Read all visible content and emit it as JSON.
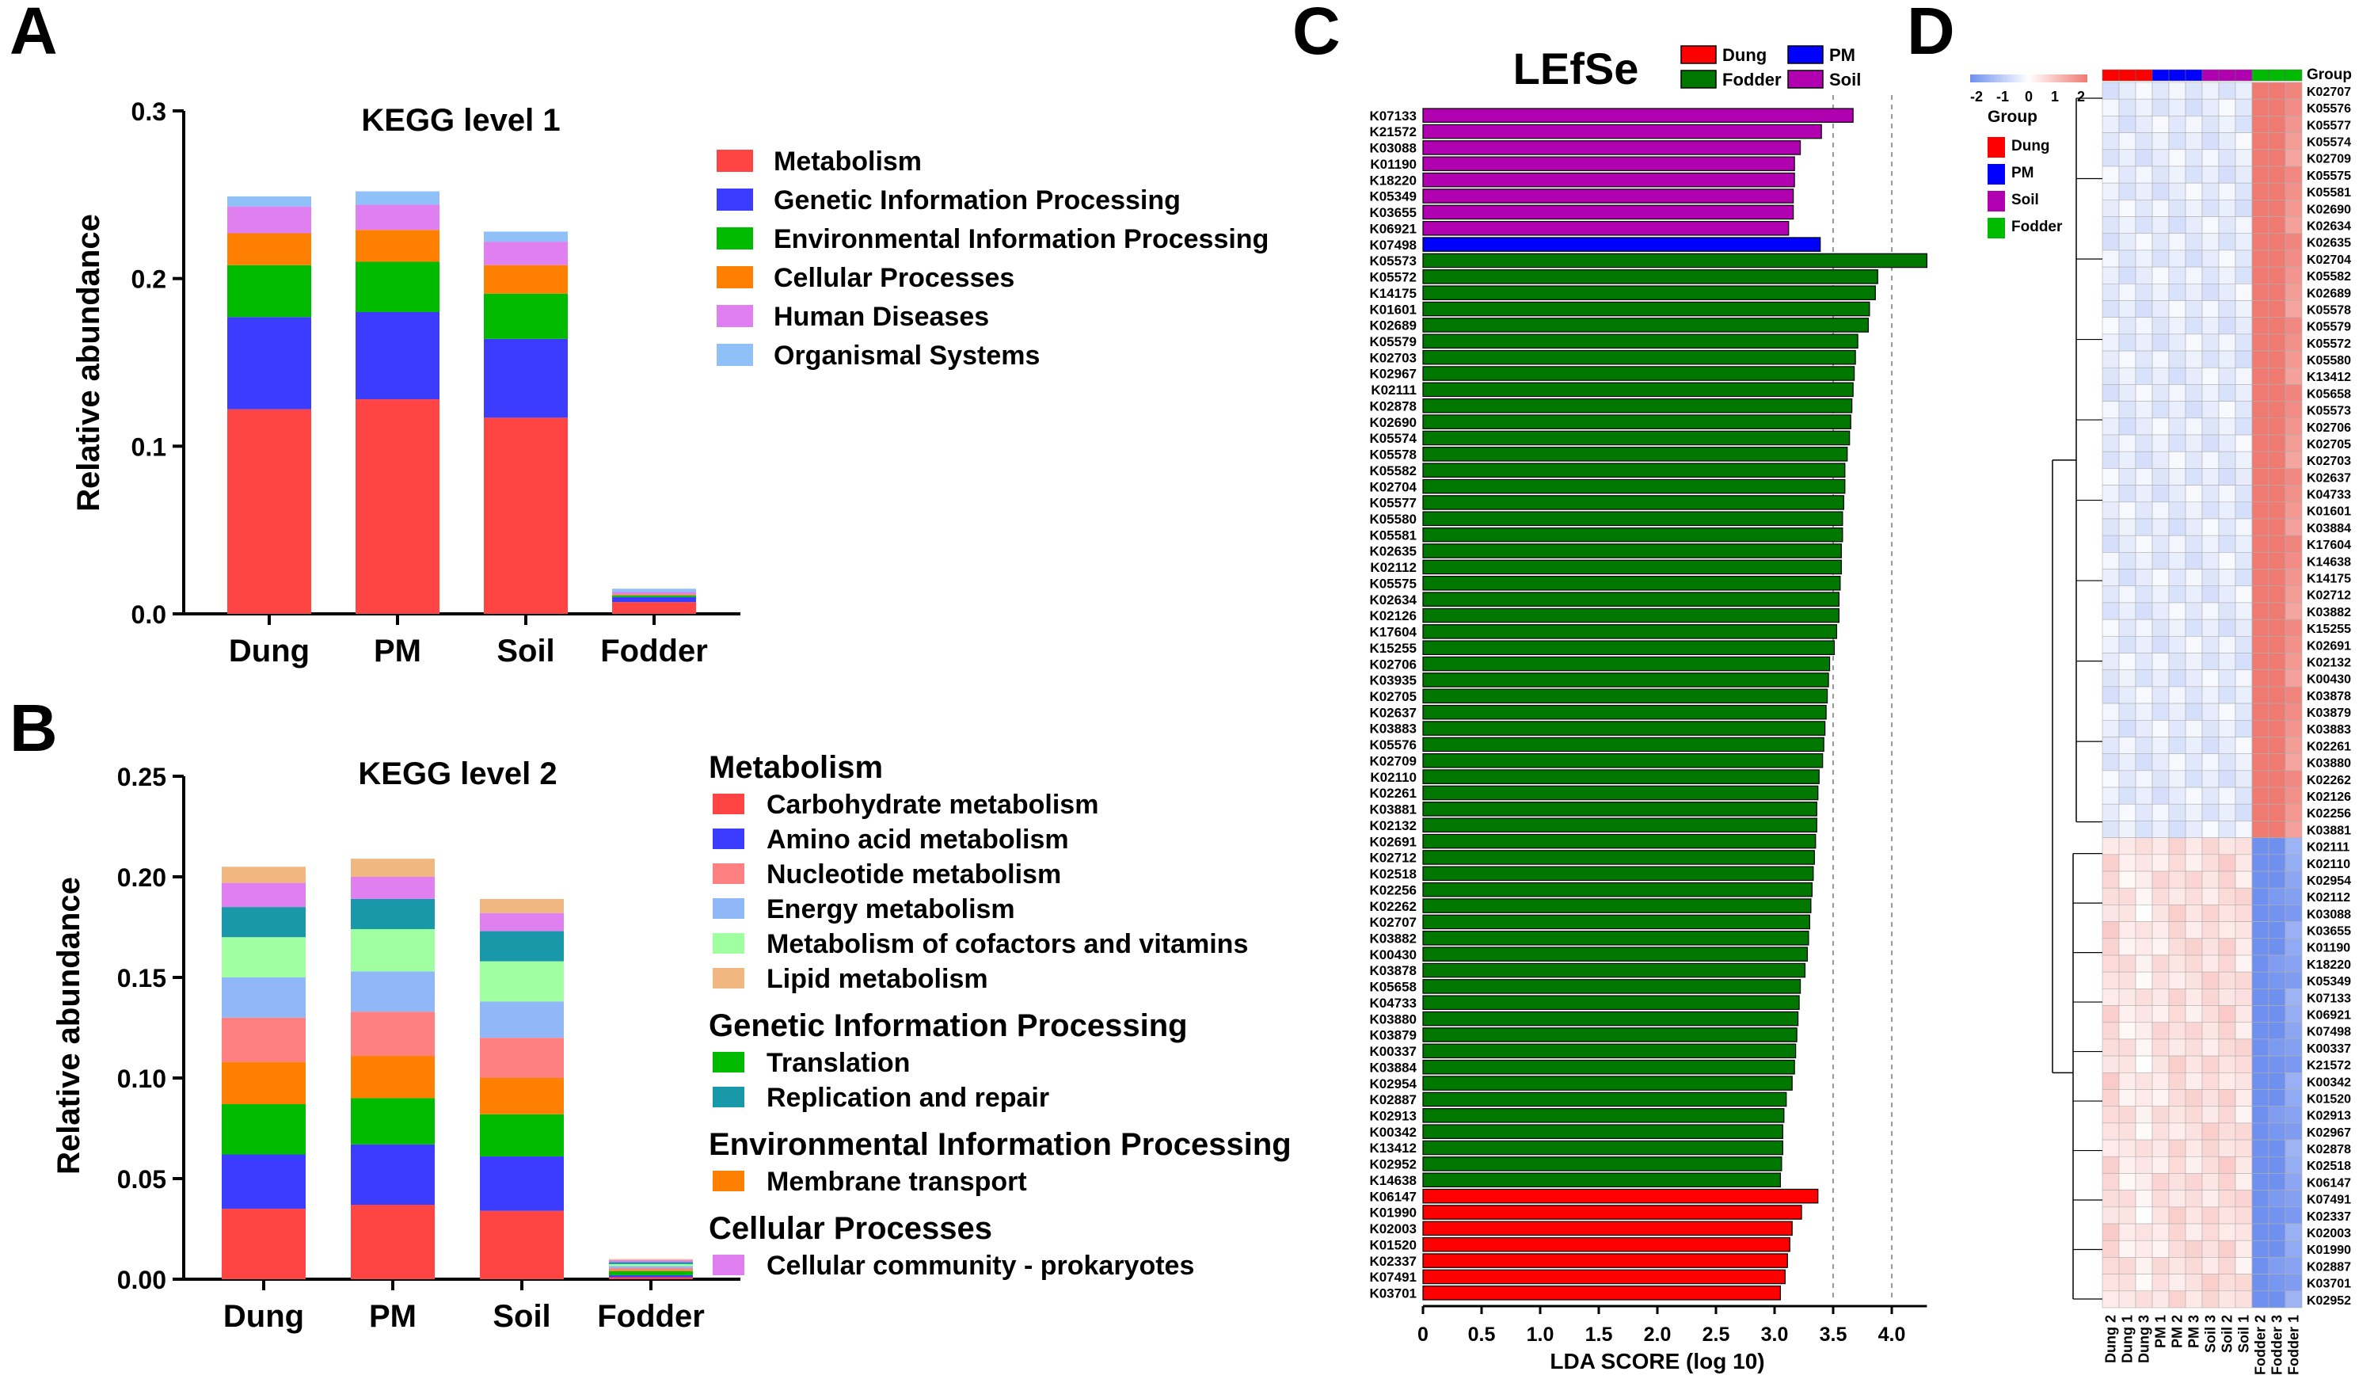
{
  "panels": {
    "a": "A",
    "b": "B",
    "c": "C",
    "d": "D"
  },
  "colors": {
    "metabolism": "#ff4444",
    "genetic": "#3c3cff",
    "environmental": "#00bb00",
    "cellular": "#ff8000",
    "human": "#e080f0",
    "organismal": "#90c0f8",
    "carbohydrate": "#ff4444",
    "amino": "#3c3cff",
    "nucleotide": "#ff8080",
    "energy": "#90b8f8",
    "cofactors": "#a0ffa0",
    "lipid": "#f0b880",
    "translation": "#00bb00",
    "replication": "#1898a8",
    "membrane": "#ff8000",
    "cellcomm": "#e080f0",
    "dung": "#ff0000",
    "pm": "#0000ff",
    "fodder": "#007800",
    "soil": "#b000b0",
    "heat_low": "#6f90ef",
    "heat_mid": "#ffffff",
    "heat_high": "#ef7a72"
  },
  "chart_data": [
    {
      "id": "A",
      "type": "bar",
      "stacked": true,
      "title": "KEGG level 1",
      "xlabel": "",
      "ylabel": "Relative abundance",
      "categories": [
        "Dung",
        "PM",
        "Soil",
        "Fodder"
      ],
      "ylim": [
        0,
        0.3
      ],
      "yticks": [
        "0.0",
        "0.1",
        "0.2",
        "0.3"
      ],
      "legend_position": "right",
      "series": [
        {
          "name": "Metabolism",
          "color_key": "metabolism",
          "values": [
            0.122,
            0.128,
            0.117,
            0.007
          ]
        },
        {
          "name": "Genetic Information Processing",
          "color_key": "genetic",
          "values": [
            0.055,
            0.052,
            0.047,
            0.003
          ]
        },
        {
          "name": "Environmental Information Processing",
          "color_key": "environmental",
          "values": [
            0.031,
            0.03,
            0.027,
            0.001
          ]
        },
        {
          "name": "Cellular Processes",
          "color_key": "cellular",
          "values": [
            0.019,
            0.019,
            0.017,
            0.0005
          ]
        },
        {
          "name": "Human Diseases",
          "color_key": "human",
          "values": [
            0.016,
            0.015,
            0.014,
            0.0015
          ]
        },
        {
          "name": "Organismal Systems",
          "color_key": "organismal",
          "values": [
            0.006,
            0.008,
            0.006,
            0.002
          ]
        }
      ]
    },
    {
      "id": "B",
      "type": "bar",
      "stacked": true,
      "title": "KEGG level 2",
      "xlabel": "",
      "ylabel": "Relative abundance",
      "categories": [
        "Dung",
        "PM",
        "Soil",
        "Fodder"
      ],
      "ylim": [
        0,
        0.25
      ],
      "yticks": [
        "0.00",
        "0.05",
        "0.10",
        "0.15",
        "0.20",
        "0.25"
      ],
      "legend_position": "right",
      "legend_groups": [
        {
          "heading": "Metabolism",
          "items": [
            "Carbohydrate metabolism",
            "Amino acid metabolism",
            "Nucleotide metabolism",
            "Energy metabolism",
            "Metabolism of cofactors and vitamins",
            "Lipid metabolism"
          ]
        },
        {
          "heading": "Genetic Information Processing",
          "items": [
            "Translation",
            "Replication and repair"
          ]
        },
        {
          "heading": "Environmental Information Processing",
          "items": [
            "Membrane transport"
          ]
        },
        {
          "heading": "Cellular Processes",
          "items": [
            "Cellular community - prokaryotes"
          ]
        }
      ],
      "series": [
        {
          "name": "Carbohydrate metabolism",
          "color_key": "carbohydrate",
          "values": [
            0.035,
            0.037,
            0.034,
            0.001
          ]
        },
        {
          "name": "Amino acid metabolism",
          "color_key": "amino",
          "values": [
            0.027,
            0.03,
            0.027,
            0.001
          ]
        },
        {
          "name": "Translation",
          "color_key": "translation",
          "values": [
            0.025,
            0.023,
            0.021,
            0.002
          ]
        },
        {
          "name": "Membrane transport",
          "color_key": "membrane",
          "values": [
            0.021,
            0.021,
            0.018,
            0.0005
          ]
        },
        {
          "name": "Nucleotide metabolism",
          "color_key": "nucleotide",
          "values": [
            0.022,
            0.022,
            0.02,
            0.001
          ]
        },
        {
          "name": "Energy metabolism",
          "color_key": "energy",
          "values": [
            0.02,
            0.02,
            0.018,
            0.001
          ]
        },
        {
          "name": "Metabolism of cofactors and vitamins",
          "color_key": "cofactors",
          "values": [
            0.02,
            0.021,
            0.02,
            0.001
          ]
        },
        {
          "name": "Replication and repair",
          "color_key": "replication",
          "values": [
            0.015,
            0.015,
            0.015,
            0.001
          ]
        },
        {
          "name": "Cellular community - prokaryotes",
          "color_key": "cellcomm",
          "values": [
            0.012,
            0.011,
            0.009,
            0.001
          ]
        },
        {
          "name": "Lipid metabolism",
          "color_key": "lipid",
          "values": [
            0.008,
            0.009,
            0.007,
            0.0005
          ]
        }
      ]
    },
    {
      "id": "C",
      "type": "bar",
      "orientation": "horizontal",
      "title": "LEfSe",
      "xlabel": "LDA SCORE (log 10)",
      "xlim": [
        0,
        4.3
      ],
      "xticks": [
        "0",
        "0.5",
        "1.0",
        "1.5",
        "2.0",
        "2.5",
        "3.0",
        "3.5",
        "4.0"
      ],
      "grid": "dashed vertical lines at 3.5 and 4.0",
      "legend": [
        {
          "name": "Dung",
          "color_key": "dung"
        },
        {
          "name": "PM",
          "color_key": "pm"
        },
        {
          "name": "Fodder",
          "color_key": "fodder"
        },
        {
          "name": "Soil",
          "color_key": "soil"
        }
      ],
      "legend_position": "top-right",
      "bars": [
        {
          "label": "K07133",
          "group": "soil",
          "value": 3.67
        },
        {
          "label": "K21572",
          "group": "soil",
          "value": 3.4
        },
        {
          "label": "K03088",
          "group": "soil",
          "value": 3.22
        },
        {
          "label": "K01190",
          "group": "soil",
          "value": 3.17
        },
        {
          "label": "K18220",
          "group": "soil",
          "value": 3.17
        },
        {
          "label": "K05349",
          "group": "soil",
          "value": 3.16
        },
        {
          "label": "K03655",
          "group": "soil",
          "value": 3.16
        },
        {
          "label": "K06921",
          "group": "soil",
          "value": 3.12
        },
        {
          "label": "K07498",
          "group": "pm",
          "value": 3.39
        },
        {
          "label": "K05573",
          "group": "fodder",
          "value": 4.3
        },
        {
          "label": "K05572",
          "group": "fodder",
          "value": 3.88
        },
        {
          "label": "K14175",
          "group": "fodder",
          "value": 3.86
        },
        {
          "label": "K01601",
          "group": "fodder",
          "value": 3.81
        },
        {
          "label": "K02689",
          "group": "fodder",
          "value": 3.8
        },
        {
          "label": "K05579",
          "group": "fodder",
          "value": 3.71
        },
        {
          "label": "K02703",
          "group": "fodder",
          "value": 3.69
        },
        {
          "label": "K02967",
          "group": "fodder",
          "value": 3.68
        },
        {
          "label": "K02111",
          "group": "fodder",
          "value": 3.67
        },
        {
          "label": "K02878",
          "group": "fodder",
          "value": 3.66
        },
        {
          "label": "K02690",
          "group": "fodder",
          "value": 3.65
        },
        {
          "label": "K05574",
          "group": "fodder",
          "value": 3.64
        },
        {
          "label": "K05578",
          "group": "fodder",
          "value": 3.62
        },
        {
          "label": "K05582",
          "group": "fodder",
          "value": 3.6
        },
        {
          "label": "K02704",
          "group": "fodder",
          "value": 3.6
        },
        {
          "label": "K05577",
          "group": "fodder",
          "value": 3.59
        },
        {
          "label": "K05580",
          "group": "fodder",
          "value": 3.58
        },
        {
          "label": "K05581",
          "group": "fodder",
          "value": 3.58
        },
        {
          "label": "K02635",
          "group": "fodder",
          "value": 3.57
        },
        {
          "label": "K02112",
          "group": "fodder",
          "value": 3.57
        },
        {
          "label": "K05575",
          "group": "fodder",
          "value": 3.56
        },
        {
          "label": "K02634",
          "group": "fodder",
          "value": 3.55
        },
        {
          "label": "K02126",
          "group": "fodder",
          "value": 3.55
        },
        {
          "label": "K17604",
          "group": "fodder",
          "value": 3.53
        },
        {
          "label": "K15255",
          "group": "fodder",
          "value": 3.51
        },
        {
          "label": "K02706",
          "group": "fodder",
          "value": 3.47
        },
        {
          "label": "K03935",
          "group": "fodder",
          "value": 3.46
        },
        {
          "label": "K02705",
          "group": "fodder",
          "value": 3.45
        },
        {
          "label": "K02637",
          "group": "fodder",
          "value": 3.44
        },
        {
          "label": "K03883",
          "group": "fodder",
          "value": 3.43
        },
        {
          "label": "K05576",
          "group": "fodder",
          "value": 3.42
        },
        {
          "label": "K02709",
          "group": "fodder",
          "value": 3.41
        },
        {
          "label": "K02110",
          "group": "fodder",
          "value": 3.38
        },
        {
          "label": "K02261",
          "group": "fodder",
          "value": 3.37
        },
        {
          "label": "K03881",
          "group": "fodder",
          "value": 3.36
        },
        {
          "label": "K02132",
          "group": "fodder",
          "value": 3.36
        },
        {
          "label": "K02691",
          "group": "fodder",
          "value": 3.35
        },
        {
          "label": "K02712",
          "group": "fodder",
          "value": 3.34
        },
        {
          "label": "K02518",
          "group": "fodder",
          "value": 3.33
        },
        {
          "label": "K02256",
          "group": "fodder",
          "value": 3.32
        },
        {
          "label": "K02262",
          "group": "fodder",
          "value": 3.31
        },
        {
          "label": "K02707",
          "group": "fodder",
          "value": 3.3
        },
        {
          "label": "K03882",
          "group": "fodder",
          "value": 3.29
        },
        {
          "label": "K00430",
          "group": "fodder",
          "value": 3.28
        },
        {
          "label": "K03878",
          "group": "fodder",
          "value": 3.26
        },
        {
          "label": "K05658",
          "group": "fodder",
          "value": 3.22
        },
        {
          "label": "K04733",
          "group": "fodder",
          "value": 3.21
        },
        {
          "label": "K03880",
          "group": "fodder",
          "value": 3.2
        },
        {
          "label": "K03879",
          "group": "fodder",
          "value": 3.19
        },
        {
          "label": "K00337",
          "group": "fodder",
          "value": 3.18
        },
        {
          "label": "K03884",
          "group": "fodder",
          "value": 3.17
        },
        {
          "label": "K02954",
          "group": "fodder",
          "value": 3.15
        },
        {
          "label": "K02887",
          "group": "fodder",
          "value": 3.1
        },
        {
          "label": "K02913",
          "group": "fodder",
          "value": 3.08
        },
        {
          "label": "K00342",
          "group": "fodder",
          "value": 3.07
        },
        {
          "label": "K13412",
          "group": "fodder",
          "value": 3.07
        },
        {
          "label": "K02952",
          "group": "fodder",
          "value": 3.06
        },
        {
          "label": "K14638",
          "group": "fodder",
          "value": 3.05
        },
        {
          "label": "K06147",
          "group": "dung",
          "value": 3.37
        },
        {
          "label": "K01990",
          "group": "dung",
          "value": 3.23
        },
        {
          "label": "K02003",
          "group": "dung",
          "value": 3.15
        },
        {
          "label": "K01520",
          "group": "dung",
          "value": 3.13
        },
        {
          "label": "K02337",
          "group": "dung",
          "value": 3.11
        },
        {
          "label": "K07491",
          "group": "dung",
          "value": 3.09
        },
        {
          "label": "K03701",
          "group": "dung",
          "value": 3.05
        }
      ]
    },
    {
      "id": "D",
      "type": "heatmap",
      "title": "",
      "legend_title": "Group",
      "scale_ticks": [
        "-2",
        "-1",
        "0",
        "1",
        "2"
      ],
      "group_legend": [
        {
          "name": "Dung",
          "color_key": "dung"
        },
        {
          "name": "PM",
          "color_key": "pm"
        },
        {
          "name": "Soil",
          "color_key": "soil"
        },
        {
          "name": "Fodder",
          "color_key": "environmental"
        }
      ],
      "group_bar_label": "Group",
      "columns": [
        "Dung 2",
        "Dung 1",
        "Dung 3",
        "PM 1",
        "PM 2",
        "PM 3",
        "Soil 3",
        "Soil 2",
        "Soil 1",
        "Fodder 2",
        "Fodder 3",
        "Fodder 1"
      ],
      "column_groups": [
        "dung",
        "dung",
        "dung",
        "pm",
        "pm",
        "pm",
        "soil",
        "soil",
        "soil",
        "environmental",
        "environmental",
        "environmental"
      ],
      "rows_fodder_enriched": [
        "K02707",
        "K05576",
        "K05577",
        "K05574",
        "K02709",
        "K05575",
        "K05581",
        "K02690",
        "K02634",
        "K02635",
        "K02704",
        "K05582",
        "K02689",
        "K05578",
        "K05579",
        "K05572",
        "K05580",
        "K13412",
        "K05658",
        "K05573",
        "K02706",
        "K02705",
        "K02703",
        "K02637",
        "K04733",
        "K01601",
        "K03884",
        "K17604",
        "K14638",
        "K14175",
        "K02712",
        "K03882",
        "K15255",
        "K02691",
        "K02132",
        "K00430",
        "K03878",
        "K03879",
        "K03883",
        "K02261",
        "K03880",
        "K02262",
        "K02126",
        "K02256",
        "K03881"
      ],
      "rows_fodder_depleted": [
        "K02111",
        "K02110",
        "K02954",
        "K02112",
        "K03088",
        "K03655",
        "K01190",
        "K18220",
        "K05349",
        "K07133",
        "K06921",
        "K07498",
        "K00337",
        "K21572",
        "K00342",
        "K01520",
        "K02913",
        "K02967",
        "K02878",
        "K02518",
        "K06147",
        "K07491",
        "K02337",
        "K02003",
        "K01990",
        "K02887",
        "K03701",
        "K02952"
      ],
      "rows_fodder_enriched_zscores": [
        -0.35,
        -0.35,
        -0.35,
        -0.35,
        -0.35,
        -0.35,
        -0.35,
        -0.35,
        -0.35,
        2.3,
        3.1,
        1.6
      ],
      "rows_fodder_depleted_zscores": [
        0.55,
        0.35,
        0.25,
        0.4,
        0.5,
        0.45,
        0.5,
        0.55,
        0.4,
        -2.3,
        -2.0,
        -1.6
      ]
    }
  ]
}
